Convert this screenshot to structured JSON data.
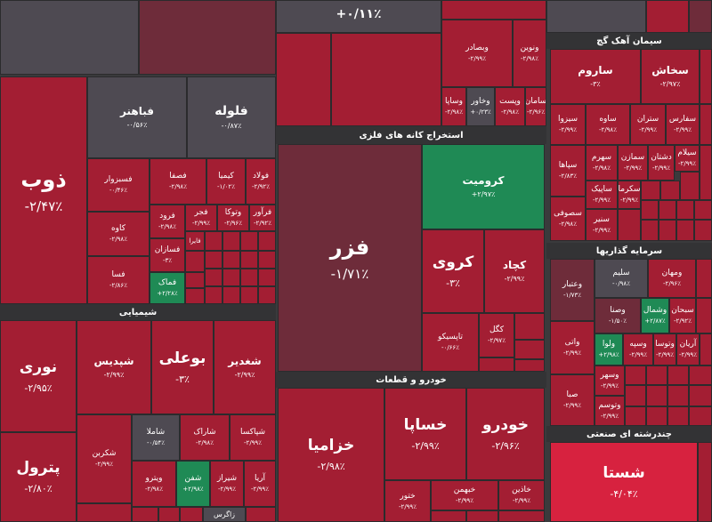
{
  "colors": {
    "red": "#a31e33",
    "maroon": "#6e2c3a",
    "gray": "#4e4a52",
    "green": "#1f8a55",
    "bright": "#d7223f",
    "background": "#3a3a3c"
  },
  "sectors": {
    "chemical": "شیمیایی",
    "metal_mining": "استخراج کانه های فلزی",
    "auto": "خودرو و قطعات",
    "cement": "سیمان آهک گچ",
    "investment": "سرمایه گذاریها",
    "multi": "چندرشته ای صنعتی"
  },
  "tiles": {
    "top_mid": {
      "name": "",
      "pct": "+۰/۱۱٪"
    },
    "zob": {
      "name": "ذوب",
      "pct": "-۲/۴۷٪"
    },
    "fabahonar": {
      "name": "فباهنر",
      "pct": "-۰/۵۶٪"
    },
    "foloole": {
      "name": "فلوله",
      "pct": "-۰/۸۷٪"
    },
    "fsabzevar": {
      "name": "فسبزوار",
      "pct": "-۰/۴۶٪"
    },
    "fesfa": {
      "name": "فصفا",
      "pct": "-۲/۹۸٪"
    },
    "kimia": {
      "name": "کیمیا",
      "pct": "-۱/۰۲٪"
    },
    "foulad": {
      "name": "فولاد",
      "pct": "-۲/۹۲٪"
    },
    "kave": {
      "name": "کاوه",
      "pct": "-۲/۹۸٪"
    },
    "ferood": {
      "name": "فرود",
      "pct": "-۲/۹۸٪"
    },
    "fajr": {
      "name": "فجر",
      "pct": "-۲/۹۹٪"
    },
    "vatoka": {
      "name": "وتوکا",
      "pct": "-۲/۹۶٪"
    },
    "faravar": {
      "name": "فرآور",
      "pct": "-۲/۹۲٪"
    },
    "fasazan": {
      "name": "فسازان",
      "pct": "-۳٪"
    },
    "fajra": {
      "name": "فایرا",
      "pct": ""
    },
    "fesa": {
      "name": "فسا",
      "pct": "-۲/۸۶٪"
    },
    "famak": {
      "name": "فماک",
      "pct": "+۲/۲۸٪"
    },
    "nouri": {
      "name": "نوری",
      "pct": "-۲/۹۵٪"
    },
    "petrol": {
      "name": "پترول",
      "pct": "-۲/۸۰٪"
    },
    "shepdis": {
      "name": "شپدیس",
      "pct": "-۲/۹۹٪"
    },
    "bouali": {
      "name": "بوعلی",
      "pct": "-۳٪"
    },
    "shghadir": {
      "name": "شغدیر",
      "pct": "-۲/۹۹٪"
    },
    "shamla": {
      "name": "شاملا",
      "pct": "-۰/۵۴٪"
    },
    "sharak": {
      "name": "شاراک",
      "pct": "-۲/۹۸٪"
    },
    "shekarbon": {
      "name": "شکربن",
      "pct": "-۲/۹۹٪"
    },
    "shapaksa": {
      "name": "شپاکسا",
      "pct": "-۲/۹۹٪"
    },
    "vitro": {
      "name": "ویترو",
      "pct": "-۲/۹۸٪"
    },
    "shafan": {
      "name": "شفن",
      "pct": "+۲/۹۸٪"
    },
    "shiraz": {
      "name": "شیراز",
      "pct": "-۲/۹۹٪"
    },
    "arya": {
      "name": "آریا",
      "pct": "-۲/۹۹٪"
    },
    "zagros": {
      "name": "زاگرس",
      "pct": "-۰/۷۸٪"
    },
    "fazar": {
      "name": "فزر",
      "pct": "-۱/۷۱٪"
    },
    "kroumit": {
      "name": "کرومیت",
      "pct": "+۲/۹۷٪"
    },
    "kroui": {
      "name": "کروی",
      "pct": "-۳٪"
    },
    "kechad": {
      "name": "کچاد",
      "pct": "-۲/۹۹٪"
    },
    "tapsiko": {
      "name": "تاپسیکو",
      "pct": "-۰/۶۶٪"
    },
    "kegol": {
      "name": "کگل",
      "pct": "-۲/۹۷٪"
    },
    "vebsader": {
      "name": "وبصادر",
      "pct": "-۲/۹۹٪"
    },
    "vonovin": {
      "name": "ونوین",
      "pct": "-۲/۹۸٪"
    },
    "vesapa": {
      "name": "وساپا",
      "pct": "-۲/۹۸٪"
    },
    "vekhavar": {
      "name": "وخاور",
      "pct": "+۰/۲۳٪"
    },
    "vist": {
      "name": "وپست",
      "pct": "-۲/۹۸٪"
    },
    "saman": {
      "name": "سامان",
      "pct": "-۲/۹۶٪"
    },
    "khodro": {
      "name": "خودرو",
      "pct": "-۲/۹۶٪"
    },
    "khsapa": {
      "name": "خساپا",
      "pct": "-۲/۹۹٪"
    },
    "khzamia": {
      "name": "خزامیا",
      "pct": "-۲/۹۸٪"
    },
    "khatour": {
      "name": "ختور",
      "pct": "-۲/۹۹٪"
    },
    "khbahman": {
      "name": "خبهمن",
      "pct": "-۲/۹۹٪"
    },
    "khadin": {
      "name": "خاذین",
      "pct": "-۲/۹۹٪"
    },
    "sarom": {
      "name": "ساروم",
      "pct": "-۳٪"
    },
    "sakhash": {
      "name": "سخاش",
      "pct": "-۲/۹۷٪"
    },
    "sizva": {
      "name": "سیزوا",
      "pct": "-۲/۹۹٪"
    },
    "sava": {
      "name": "ساوه",
      "pct": "-۲/۹۸٪"
    },
    "setran": {
      "name": "ستران",
      "pct": "-۲/۹۹٪"
    },
    "sefares": {
      "name": "سفارس",
      "pct": "-۲/۹۹٪"
    },
    "sepaha": {
      "name": "سپاها",
      "pct": "-۲/۸۳٪"
    },
    "sahrm": {
      "name": "سهرم",
      "pct": "-۲/۹۸٪"
    },
    "samazan": {
      "name": "سمازن",
      "pct": "-۲/۹۹٪"
    },
    "dashtan": {
      "name": "دشتان",
      "pct": "-۲/۹۹٪"
    },
    "seylam": {
      "name": "سیلام",
      "pct": "-۲/۹۹٪"
    },
    "sekarma": {
      "name": "سکرما",
      "pct": "-۲/۹۹٪"
    },
    "saapik": {
      "name": "ساپیک",
      "pct": "-۲/۹۹٪"
    },
    "sasufa": {
      "name": "سصوفی",
      "pct": "-۲/۹۸٪"
    },
    "sentir": {
      "name": "سنیر",
      "pct": "-۲/۹۹٪"
    },
    "vaetebar": {
      "name": "وعتبار",
      "pct": "-۱/۷۳٪"
    },
    "salim": {
      "name": "سلیم",
      "pct": "-۰/۹۸٪"
    },
    "vmahan": {
      "name": "ومهان",
      "pct": "-۲/۹۶٪"
    },
    "vasna": {
      "name": "وصنا",
      "pct": "-۱/۵۰٪"
    },
    "vshmal": {
      "name": "وشمال",
      "pct": "+۲/۸۷٪"
    },
    "sabhan": {
      "name": "سبحان",
      "pct": "-۲/۹۲٪"
    },
    "vati": {
      "name": "واتی",
      "pct": "-۲/۹۹٪"
    },
    "valua": {
      "name": "ولوا",
      "pct": "+۲/۹۸٪"
    },
    "vasiye": {
      "name": "وسپه",
      "pct": "-۲/۹۹٪"
    },
    "vatusa": {
      "name": "وتوسا",
      "pct": "-۲/۹۹٪"
    },
    "arian": {
      "name": "آریان",
      "pct": "-۲/۹۹٪"
    },
    "saba": {
      "name": "صبا",
      "pct": "-۲/۹۹٪"
    },
    "vsahar": {
      "name": "وسهر",
      "pct": "-۲/۹۹٪"
    },
    "vtusam": {
      "name": "وتوسم",
      "pct": "-۲/۹۹٪"
    },
    "shasta": {
      "name": "شستا",
      "pct": "-۴/۰۴٪"
    }
  }
}
